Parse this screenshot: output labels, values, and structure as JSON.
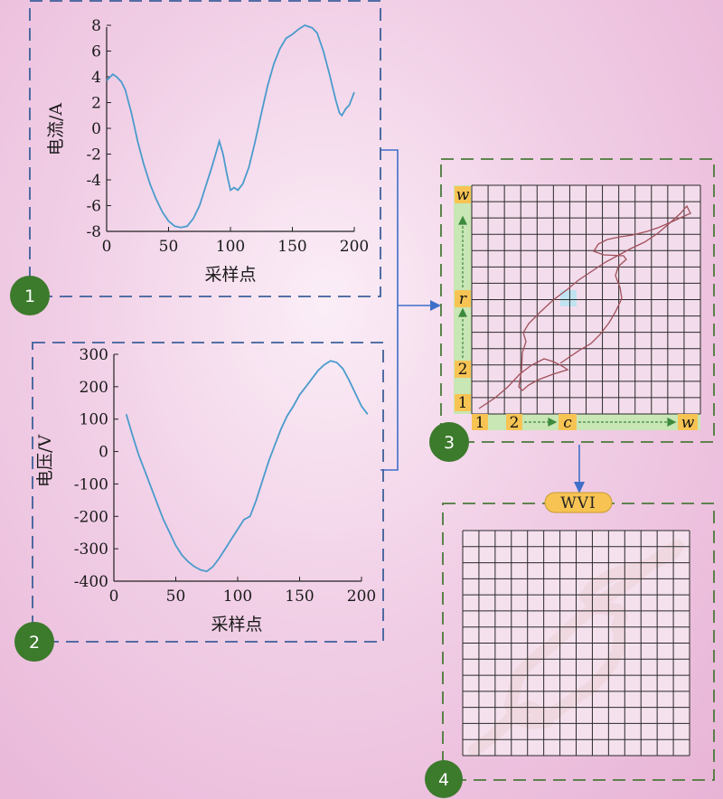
{
  "panels": {
    "current": {
      "badge": "1",
      "ylabel": "电流/A",
      "xlabel": "采样点",
      "color": "#4a9bcc"
    },
    "voltage": {
      "badge": "2",
      "ylabel": "电压/V",
      "xlabel": "采样点",
      "color": "#4a9bcc"
    },
    "vi_grid": {
      "badge": "3",
      "row_labels": [
        "w",
        "r",
        "2",
        "1"
      ],
      "col_labels": [
        "1",
        "2",
        "c",
        "w"
      ],
      "grid_size": 14,
      "trajectory_color": "#a0505a",
      "highlight_color": "#bfe3f0"
    },
    "wvi": {
      "badge": "4",
      "title": "WVI",
      "grid_size": 14
    }
  },
  "chart_data": [
    {
      "type": "line",
      "name": "current",
      "xlabel": "采样点",
      "ylabel": "电流/A",
      "xlim": [
        0,
        200
      ],
      "ylim": [
        -8,
        8
      ],
      "xticks": [
        0,
        50,
        100,
        150,
        200
      ],
      "yticks": [
        8,
        6,
        4,
        2,
        0,
        -2,
        -4,
        -6,
        -8
      ],
      "x": [
        0,
        2,
        5,
        8,
        12,
        15,
        20,
        25,
        30,
        35,
        40,
        45,
        50,
        55,
        60,
        65,
        70,
        75,
        80,
        85,
        88,
        91,
        94,
        97,
        100,
        103,
        106,
        110,
        115,
        120,
        125,
        130,
        135,
        140,
        145,
        150,
        155,
        160,
        163,
        166,
        170,
        175,
        180,
        185,
        188,
        190,
        193,
        196,
        200
      ],
      "y": [
        3.7,
        3.9,
        4.2,
        4.0,
        3.6,
        3.0,
        1.2,
        -1.0,
        -2.8,
        -4.3,
        -5.5,
        -6.5,
        -7.2,
        -7.6,
        -7.7,
        -7.6,
        -7.0,
        -6.0,
        -4.5,
        -3.0,
        -2.0,
        -1.0,
        -2.0,
        -3.5,
        -4.8,
        -4.6,
        -4.8,
        -4.3,
        -3.0,
        -1.0,
        1.2,
        3.3,
        5.0,
        6.2,
        7.0,
        7.3,
        7.7,
        8.0,
        7.9,
        7.8,
        7.4,
        6.0,
        4.2,
        2.2,
        1.2,
        1.0,
        1.5,
        1.8,
        2.8
      ]
    },
    {
      "type": "line",
      "name": "voltage",
      "xlabel": "采样点",
      "ylabel": "电压/V",
      "xlim": [
        0,
        200
      ],
      "ylim": [
        -400,
        300
      ],
      "xticks": [
        0,
        50,
        100,
        150,
        200
      ],
      "yticks": [
        300,
        200,
        100,
        0,
        -100,
        -200,
        -300,
        -400
      ],
      "x": [
        10,
        15,
        20,
        25,
        30,
        35,
        40,
        45,
        50,
        55,
        60,
        65,
        70,
        75,
        80,
        85,
        90,
        95,
        100,
        105,
        110,
        115,
        120,
        125,
        130,
        135,
        140,
        145,
        150,
        155,
        160,
        165,
        170,
        175,
        180,
        185,
        190,
        195,
        200,
        205
      ],
      "y": [
        115,
        50,
        -10,
        -60,
        -110,
        -160,
        -210,
        -250,
        -290,
        -320,
        -340,
        -355,
        -365,
        -370,
        -355,
        -330,
        -300,
        -270,
        -240,
        -210,
        -200,
        -150,
        -90,
        -30,
        20,
        70,
        110,
        140,
        175,
        200,
        225,
        250,
        268,
        280,
        275,
        255,
        220,
        180,
        140,
        115
      ]
    }
  ]
}
